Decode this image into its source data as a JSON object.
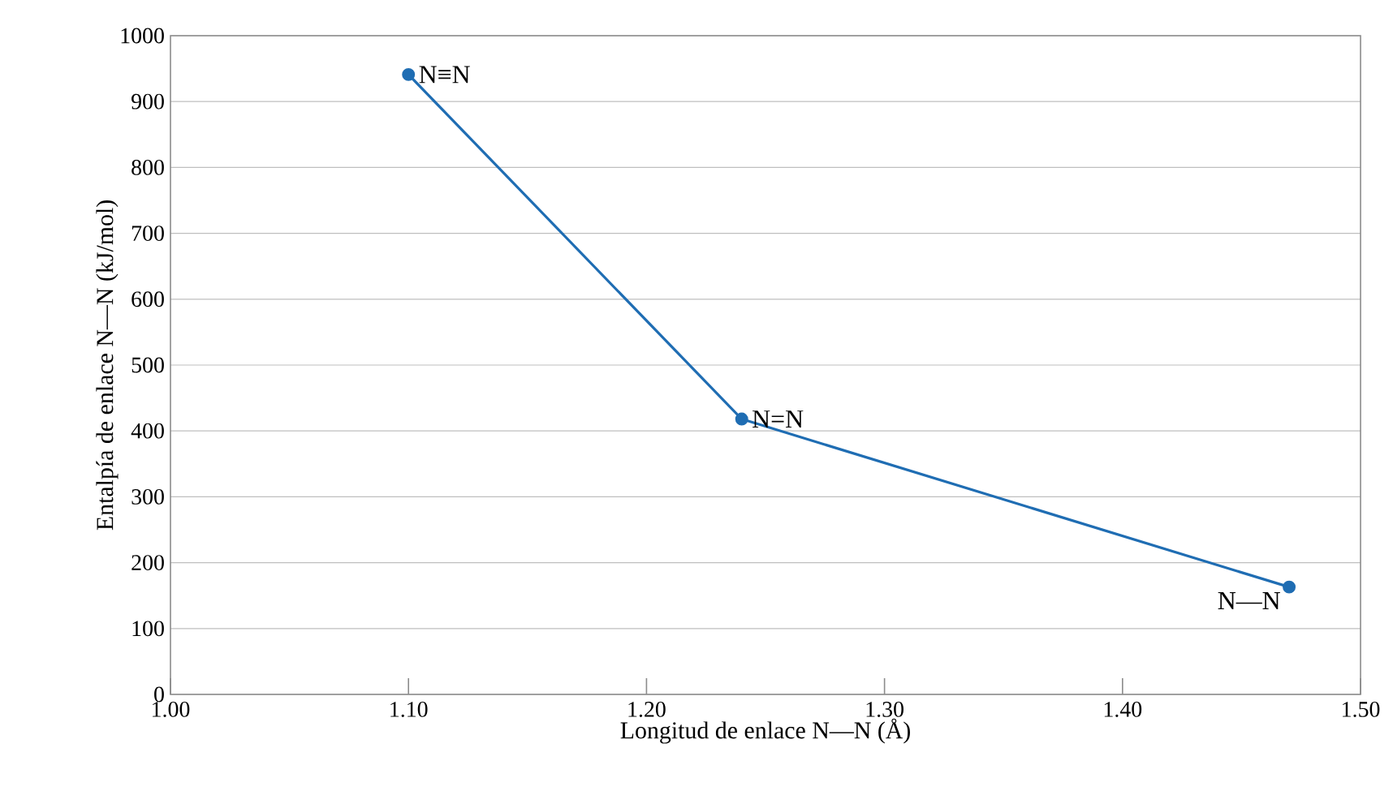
{
  "chart_data": {
    "type": "line",
    "xlabel": "Longitud de enlace N—N (Å)",
    "ylabel": "Entalpía de enlace N—N (kJ/mol)",
    "x": [
      1.1,
      1.24,
      1.47
    ],
    "series": [
      {
        "color": "#1f6db3",
        "values": [
          941,
          418,
          163
        ]
      }
    ],
    "xlim": [
      1.0,
      1.5
    ],
    "xticks": [
      {
        "value": 1.0,
        "label": "1.00"
      },
      {
        "value": 1.1,
        "label": "1.10"
      },
      {
        "value": 1.2,
        "label": "1.20"
      },
      {
        "value": 1.3,
        "label": "1.30"
      },
      {
        "value": 1.4,
        "label": "1.40"
      },
      {
        "value": 1.5,
        "label": "1.50"
      }
    ],
    "ylim": [
      0,
      1000
    ],
    "yticks": [
      0,
      100,
      200,
      300,
      400,
      500,
      600,
      700,
      800,
      900,
      1000
    ],
    "grid": "y",
    "marker": "circle",
    "line_style": "solid",
    "annotations": [
      {
        "text": "N≡N",
        "x": 1.1,
        "y": 941
      },
      {
        "text": "N=N",
        "x": 1.24,
        "y": 418
      },
      {
        "text": "N—N",
        "x": 1.47,
        "y": 163
      }
    ]
  }
}
